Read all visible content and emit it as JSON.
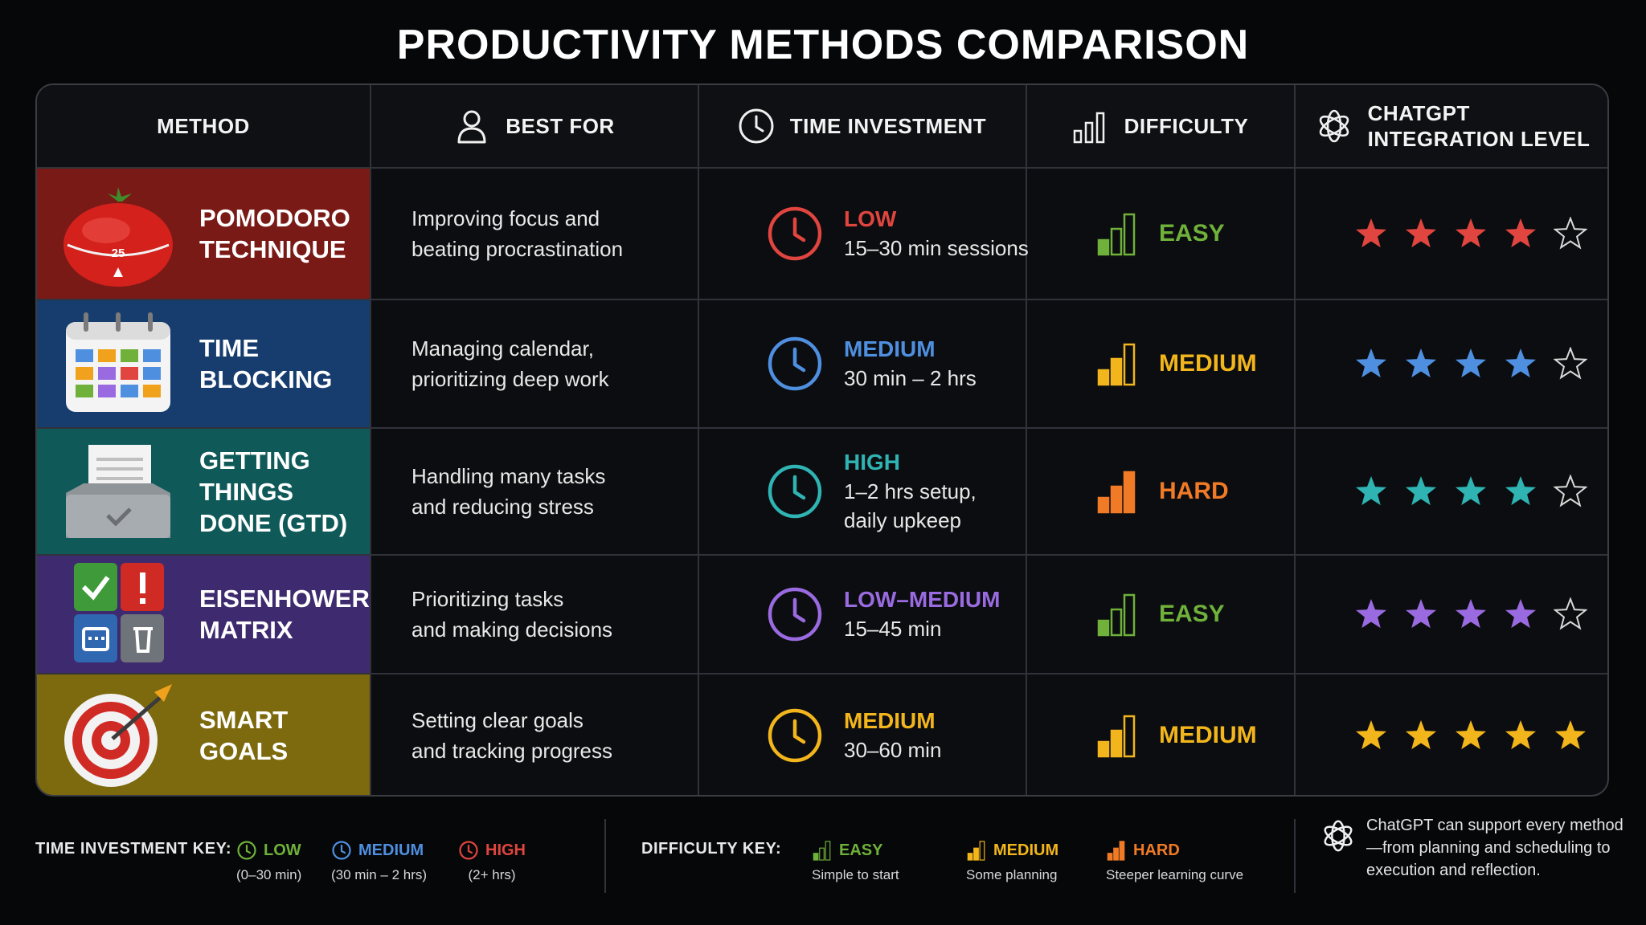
{
  "title": "PRODUCTIVITY METHODS COMPARISON",
  "headers": {
    "method": "METHOD",
    "best_for": "BEST FOR",
    "time_investment": "TIME INVESTMENT",
    "difficulty": "DIFFICULTY",
    "integration": "CHATGPT\nINTEGRATION LEVEL"
  },
  "icons": {
    "best_for": "person-icon",
    "time_investment": "clock-icon",
    "difficulty": "signal-bars-icon",
    "integration": "chatgpt-logo-icon"
  },
  "rows": [
    {
      "name": "POMODORO\nTECHNIQUE",
      "icon": "tomato-timer-icon",
      "timer_label": "25",
      "bg": "#7a1a17",
      "best_for": "Improving focus and\nbeating procrastination",
      "time_level": "LOW",
      "time_desc": "15–30 min sessions",
      "time_color": "#e0453f",
      "difficulty": "EASY",
      "difficulty_color": "#6fb13a",
      "difficulty_bars": 1,
      "stars": 4,
      "star_color": "#e0453f"
    },
    {
      "name": "TIME\nBLOCKING",
      "icon": "calendar-icon",
      "bg": "#173d6e",
      "best_for": "Managing calendar,\nprioritizing deep work",
      "time_level": "MEDIUM",
      "time_desc": "30 min – 2 hrs",
      "time_color": "#4f8fe0",
      "difficulty": "MEDIUM",
      "difficulty_color": "#f2b61c",
      "difficulty_bars": 2,
      "stars": 4,
      "star_color": "#4f8fe0"
    },
    {
      "name": "GETTING\nTHINGS\nDONE (GTD)",
      "icon": "inbox-tray-icon",
      "bg": "#0f5a59",
      "best_for": "Handling many tasks\nand reducing stress",
      "time_level": "HIGH",
      "time_desc": "1–2 hrs setup,\ndaily upkeep",
      "time_color": "#2fb3b3",
      "difficulty": "HARD",
      "difficulty_color": "#f07a26",
      "difficulty_bars": 3,
      "stars": 4,
      "star_color": "#2fb3b3"
    },
    {
      "name": "EISENHOWER\nMATRIX",
      "icon": "matrix-quadrant-icon",
      "bg": "#3e2a6e",
      "best_for": "Prioritizing tasks\nand making decisions",
      "time_level": "LOW–MEDIUM",
      "time_desc": "15–45 min",
      "time_color": "#9a6be0",
      "difficulty": "EASY",
      "difficulty_color": "#6fb13a",
      "difficulty_bars": 1,
      "stars": 4,
      "star_color": "#9a6be0"
    },
    {
      "name": "SMART\nGOALS",
      "icon": "target-arrow-icon",
      "bg": "#7e6a0e",
      "best_for": "Setting clear goals\nand tracking progress",
      "time_level": "MEDIUM",
      "time_desc": "30–60 min",
      "time_color": "#f2b61c",
      "difficulty": "MEDIUM",
      "difficulty_color": "#f2b61c",
      "difficulty_bars": 2,
      "stars": 5,
      "star_color": "#f2b61c"
    }
  ],
  "legend": {
    "time_key": "TIME INVESTMENT KEY:",
    "time_items": [
      {
        "label": "LOW",
        "sub": "(0–30 min)",
        "color": "#6fb13a"
      },
      {
        "label": "MEDIUM",
        "sub": "(30 min – 2 hrs)",
        "color": "#4f8fe0"
      },
      {
        "label": "HIGH",
        "sub": "(2+ hrs)",
        "color": "#e0453f"
      }
    ],
    "difficulty_key": "DIFFICULTY KEY:",
    "difficulty_items": [
      {
        "label": "EASY",
        "sub": "Simple to start",
        "color": "#6fb13a",
        "bars": 1
      },
      {
        "label": "MEDIUM",
        "sub": "Some planning",
        "color": "#f2b61c",
        "bars": 2
      },
      {
        "label": "HARD",
        "sub": "Steeper learning curve",
        "color": "#f07a26",
        "bars": 3
      }
    ],
    "note": "ChatGPT can support every method—from planning and scheduling to execution and reflection."
  }
}
